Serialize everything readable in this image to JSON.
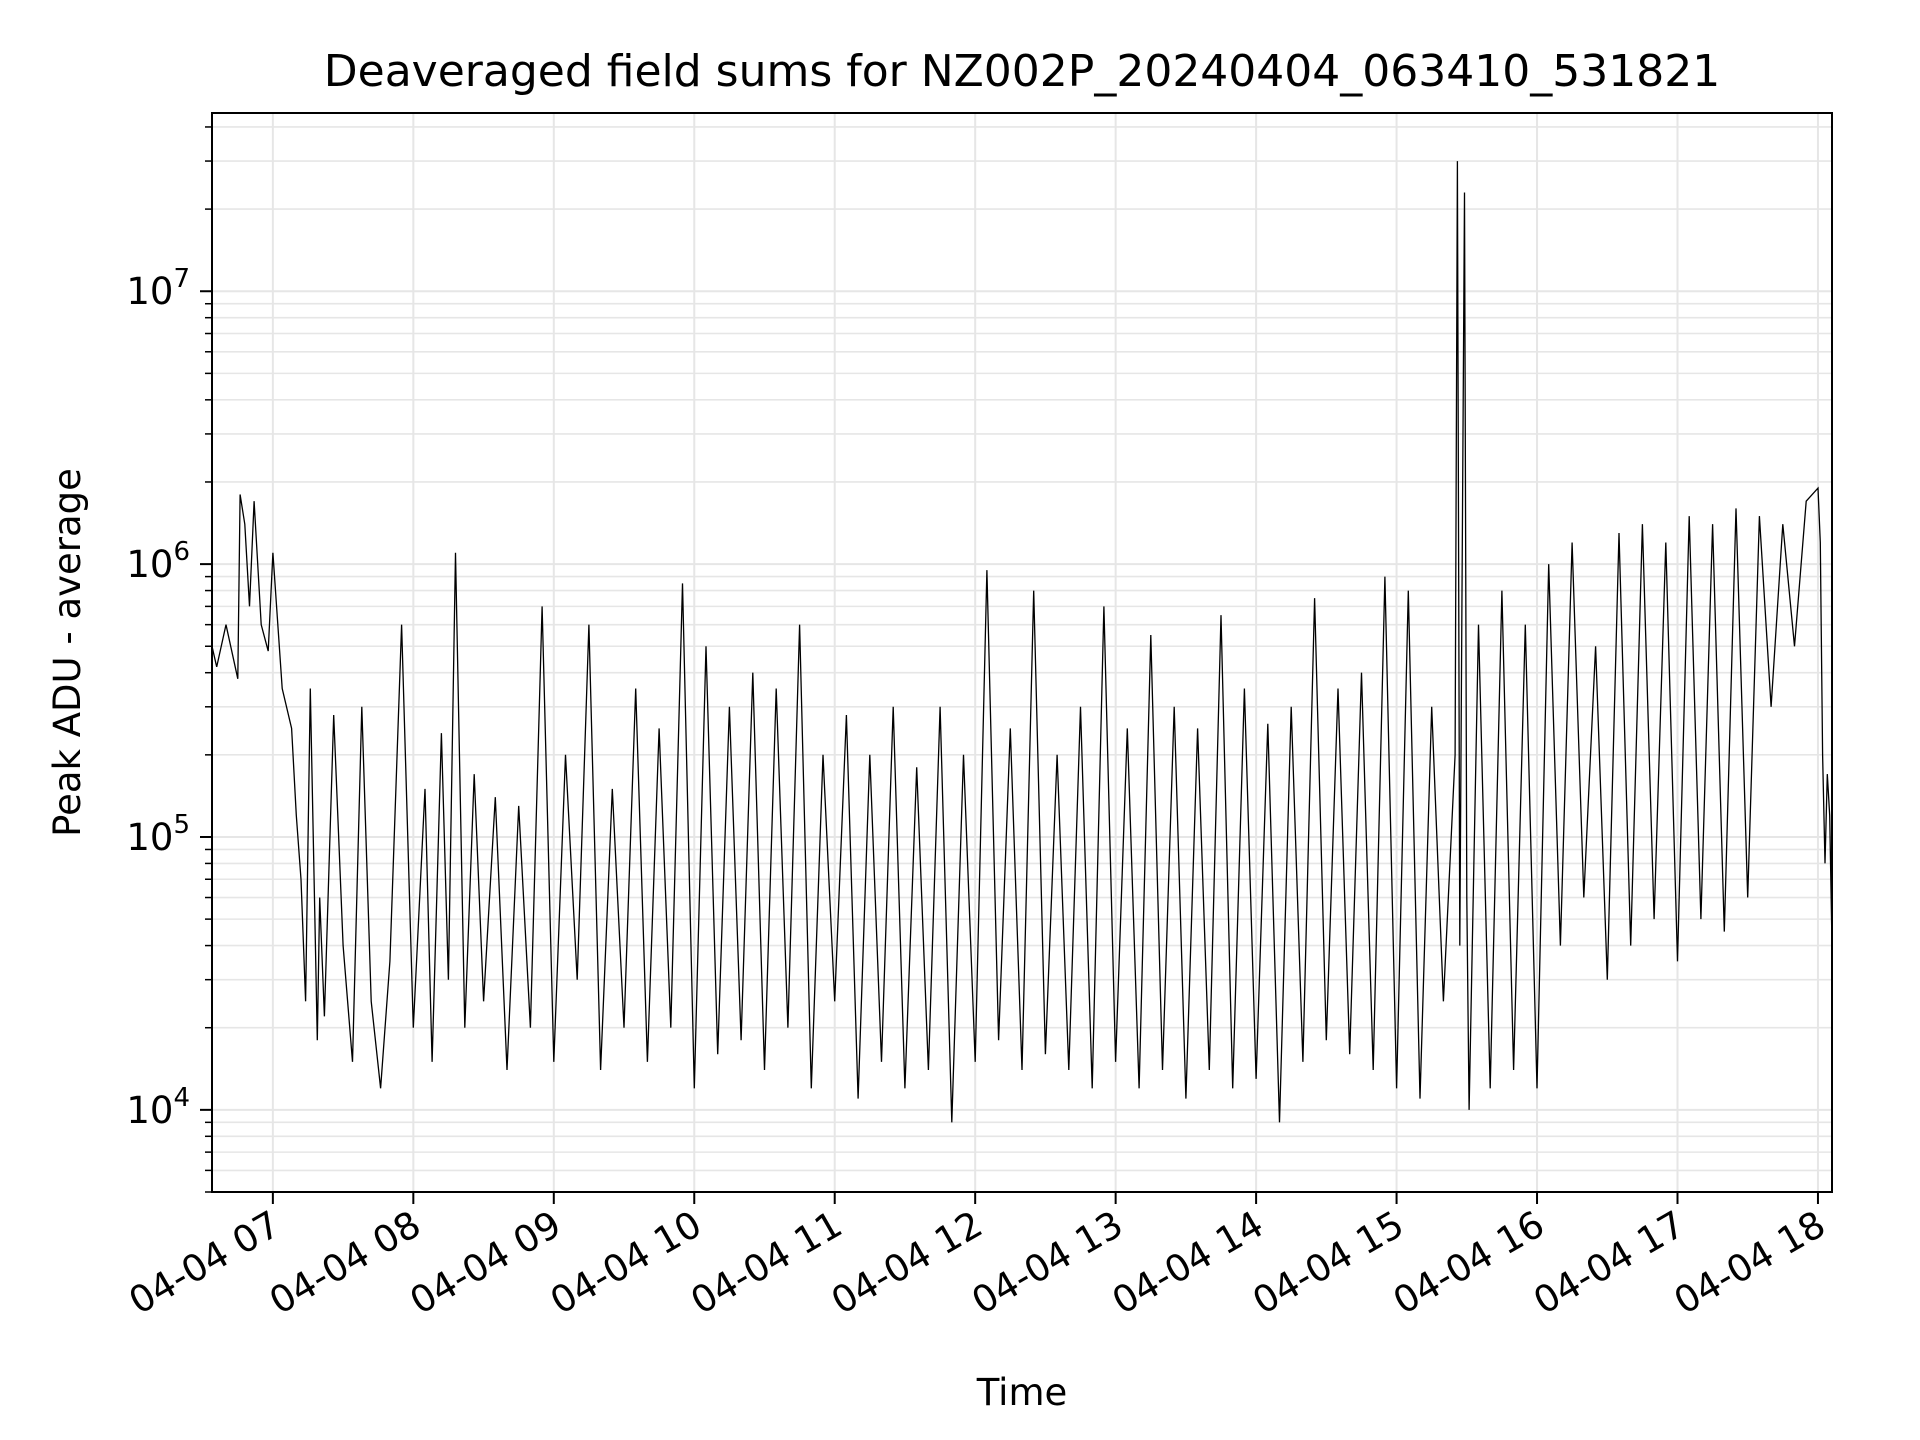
{
  "chart_data": {
    "type": "line",
    "title": "Deaveraged field sums for NZ002P_20240404_063410_531821",
    "xlabel": "Time",
    "ylabel": "Peak ADU - average",
    "yscale": "log",
    "ylim": [
      5000,
      45000000
    ],
    "xlim": [
      "2024-04-04 06:34",
      "2024-04-04 18:06"
    ],
    "grid": true,
    "line_color": "#000000",
    "grid_color": "#e6e6e6",
    "x_ticks": [
      {
        "value": "2024-04-04 07:00",
        "label": "04-04 07"
      },
      {
        "value": "2024-04-04 08:00",
        "label": "04-04 08"
      },
      {
        "value": "2024-04-04 09:00",
        "label": "04-04 09"
      },
      {
        "value": "2024-04-04 10:00",
        "label": "04-04 10"
      },
      {
        "value": "2024-04-04 11:00",
        "label": "04-04 11"
      },
      {
        "value": "2024-04-04 12:00",
        "label": "04-04 12"
      },
      {
        "value": "2024-04-04 13:00",
        "label": "04-04 13"
      },
      {
        "value": "2024-04-04 14:00",
        "label": "04-04 14"
      },
      {
        "value": "2024-04-04 15:00",
        "label": "04-04 15"
      },
      {
        "value": "2024-04-04 16:00",
        "label": "04-04 16"
      },
      {
        "value": "2024-04-04 17:00",
        "label": "04-04 17"
      },
      {
        "value": "2024-04-04 18:00",
        "label": "04-04 18"
      }
    ],
    "y_ticks": [
      {
        "value": 10000,
        "base": "10",
        "exp": "4"
      },
      {
        "value": 100000,
        "base": "10",
        "exp": "5"
      },
      {
        "value": 1000000,
        "base": "10",
        "exp": "6"
      },
      {
        "value": 10000000,
        "base": "10",
        "exp": "7"
      }
    ],
    "series": [
      {
        "x": [
          "2024-04-04 06:34",
          "2024-04-04 06:36",
          "2024-04-04 06:40",
          "2024-04-04 06:45",
          "2024-04-04 06:46",
          "2024-04-04 06:48",
          "2024-04-04 06:50",
          "2024-04-04 06:52",
          "2024-04-04 06:55",
          "2024-04-04 06:58",
          "2024-04-04 07:00",
          "2024-04-04 07:04",
          "2024-04-04 07:08",
          "2024-04-04 07:10",
          "2024-04-04 07:12",
          "2024-04-04 07:14",
          "2024-04-04 07:16",
          "2024-04-04 07:19",
          "2024-04-04 07:20",
          "2024-04-04 07:22",
          "2024-04-04 07:26",
          "2024-04-04 07:30",
          "2024-04-04 07:34",
          "2024-04-04 07:38",
          "2024-04-04 07:42",
          "2024-04-04 07:46",
          "2024-04-04 07:50",
          "2024-04-04 07:55",
          "2024-04-04 08:00",
          "2024-04-04 08:05",
          "2024-04-04 08:08",
          "2024-04-04 08:12",
          "2024-04-04 08:15",
          "2024-04-04 08:18",
          "2024-04-04 08:22",
          "2024-04-04 08:26",
          "2024-04-04 08:30",
          "2024-04-04 08:35",
          "2024-04-04 08:40",
          "2024-04-04 08:45",
          "2024-04-04 08:50",
          "2024-04-04 08:55",
          "2024-04-04 09:00",
          "2024-04-04 09:05",
          "2024-04-04 09:10",
          "2024-04-04 09:15",
          "2024-04-04 09:20",
          "2024-04-04 09:25",
          "2024-04-04 09:30",
          "2024-04-04 09:35",
          "2024-04-04 09:40",
          "2024-04-04 09:45",
          "2024-04-04 09:50",
          "2024-04-04 09:55",
          "2024-04-04 10:00",
          "2024-04-04 10:05",
          "2024-04-04 10:10",
          "2024-04-04 10:15",
          "2024-04-04 10:20",
          "2024-04-04 10:25",
          "2024-04-04 10:30",
          "2024-04-04 10:35",
          "2024-04-04 10:40",
          "2024-04-04 10:45",
          "2024-04-04 10:50",
          "2024-04-04 10:55",
          "2024-04-04 11:00",
          "2024-04-04 11:05",
          "2024-04-04 11:10",
          "2024-04-04 11:15",
          "2024-04-04 11:20",
          "2024-04-04 11:25",
          "2024-04-04 11:30",
          "2024-04-04 11:35",
          "2024-04-04 11:40",
          "2024-04-04 11:45",
          "2024-04-04 11:50",
          "2024-04-04 11:55",
          "2024-04-04 12:00",
          "2024-04-04 12:05",
          "2024-04-04 12:10",
          "2024-04-04 12:15",
          "2024-04-04 12:20",
          "2024-04-04 12:25",
          "2024-04-04 12:30",
          "2024-04-04 12:35",
          "2024-04-04 12:40",
          "2024-04-04 12:45",
          "2024-04-04 12:50",
          "2024-04-04 12:55",
          "2024-04-04 13:00",
          "2024-04-04 13:05",
          "2024-04-04 13:10",
          "2024-04-04 13:15",
          "2024-04-04 13:20",
          "2024-04-04 13:25",
          "2024-04-04 13:30",
          "2024-04-04 13:35",
          "2024-04-04 13:40",
          "2024-04-04 13:45",
          "2024-04-04 13:50",
          "2024-04-04 13:55",
          "2024-04-04 14:00",
          "2024-04-04 14:05",
          "2024-04-04 14:10",
          "2024-04-04 14:15",
          "2024-04-04 14:20",
          "2024-04-04 14:25",
          "2024-04-04 14:30",
          "2024-04-04 14:35",
          "2024-04-04 14:40",
          "2024-04-04 14:45",
          "2024-04-04 14:50",
          "2024-04-04 14:55",
          "2024-04-04 15:00",
          "2024-04-04 15:05",
          "2024-04-04 15:10",
          "2024-04-04 15:15",
          "2024-04-04 15:20",
          "2024-04-04 15:25",
          "2024-04-04 15:26",
          "2024-04-04 15:27",
          "2024-04-04 15:29",
          "2024-04-04 15:30",
          "2024-04-04 15:31",
          "2024-04-04 15:35",
          "2024-04-04 15:40",
          "2024-04-04 15:45",
          "2024-04-04 15:50",
          "2024-04-04 15:55",
          "2024-04-04 16:00",
          "2024-04-04 16:05",
          "2024-04-04 16:10",
          "2024-04-04 16:15",
          "2024-04-04 16:20",
          "2024-04-04 16:25",
          "2024-04-04 16:30",
          "2024-04-04 16:35",
          "2024-04-04 16:40",
          "2024-04-04 16:45",
          "2024-04-04 16:50",
          "2024-04-04 16:55",
          "2024-04-04 17:00",
          "2024-04-04 17:05",
          "2024-04-04 17:10",
          "2024-04-04 17:15",
          "2024-04-04 17:20",
          "2024-04-04 17:25",
          "2024-04-04 17:30",
          "2024-04-04 17:35",
          "2024-04-04 17:40",
          "2024-04-04 17:45",
          "2024-04-04 17:50",
          "2024-04-04 17:55",
          "2024-04-04 18:00",
          "2024-04-04 18:01",
          "2024-04-04 18:02",
          "2024-04-04 18:03",
          "2024-04-04 18:04",
          "2024-04-04 18:05",
          "2024-04-04 18:06"
        ],
        "y": [
          500000,
          420000,
          600000,
          380000,
          1800000,
          1400000,
          700000,
          1700000,
          600000,
          480000,
          1100000,
          350000,
          250000,
          120000,
          70000,
          25000,
          350000,
          18000,
          60000,
          22000,
          280000,
          40000,
          15000,
          300000,
          25000,
          12000,
          35000,
          600000,
          20000,
          150000,
          15000,
          240000,
          30000,
          1100000,
          20000,
          170000,
          25000,
          140000,
          14000,
          130000,
          20000,
          700000,
          15000,
          200000,
          30000,
          600000,
          14000,
          150000,
          20000,
          350000,
          15000,
          250000,
          20000,
          850000,
          12000,
          500000,
          16000,
          300000,
          18000,
          400000,
          14000,
          350000,
          20000,
          600000,
          12000,
          200000,
          25000,
          280000,
          11000,
          200000,
          15000,
          300000,
          12000,
          180000,
          14000,
          300000,
          9000,
          200000,
          15000,
          950000,
          18000,
          250000,
          14000,
          800000,
          16000,
          200000,
          14000,
          300000,
          12000,
          700000,
          15000,
          250000,
          12000,
          550000,
          14000,
          300000,
          11000,
          250000,
          14000,
          650000,
          12000,
          350000,
          13000,
          260000,
          9000,
          300000,
          15000,
          750000,
          18000,
          350000,
          16000,
          400000,
          14000,
          900000,
          12000,
          800000,
          11000,
          300000,
          25000,
          200000,
          30000000,
          40000,
          23000000,
          60000,
          10000,
          600000,
          12000,
          800000,
          14000,
          600000,
          12000,
          1000000,
          40000,
          1200000,
          60000,
          500000,
          30000,
          1300000,
          40000,
          1400000,
          50000,
          1200000,
          35000,
          1500000,
          50000,
          1400000,
          45000,
          1600000,
          60000,
          1500000,
          300000,
          1400000,
          500000,
          1700000,
          1900000,
          1200000,
          200000,
          80000,
          170000,
          120000,
          40000
        ]
      }
    ]
  }
}
